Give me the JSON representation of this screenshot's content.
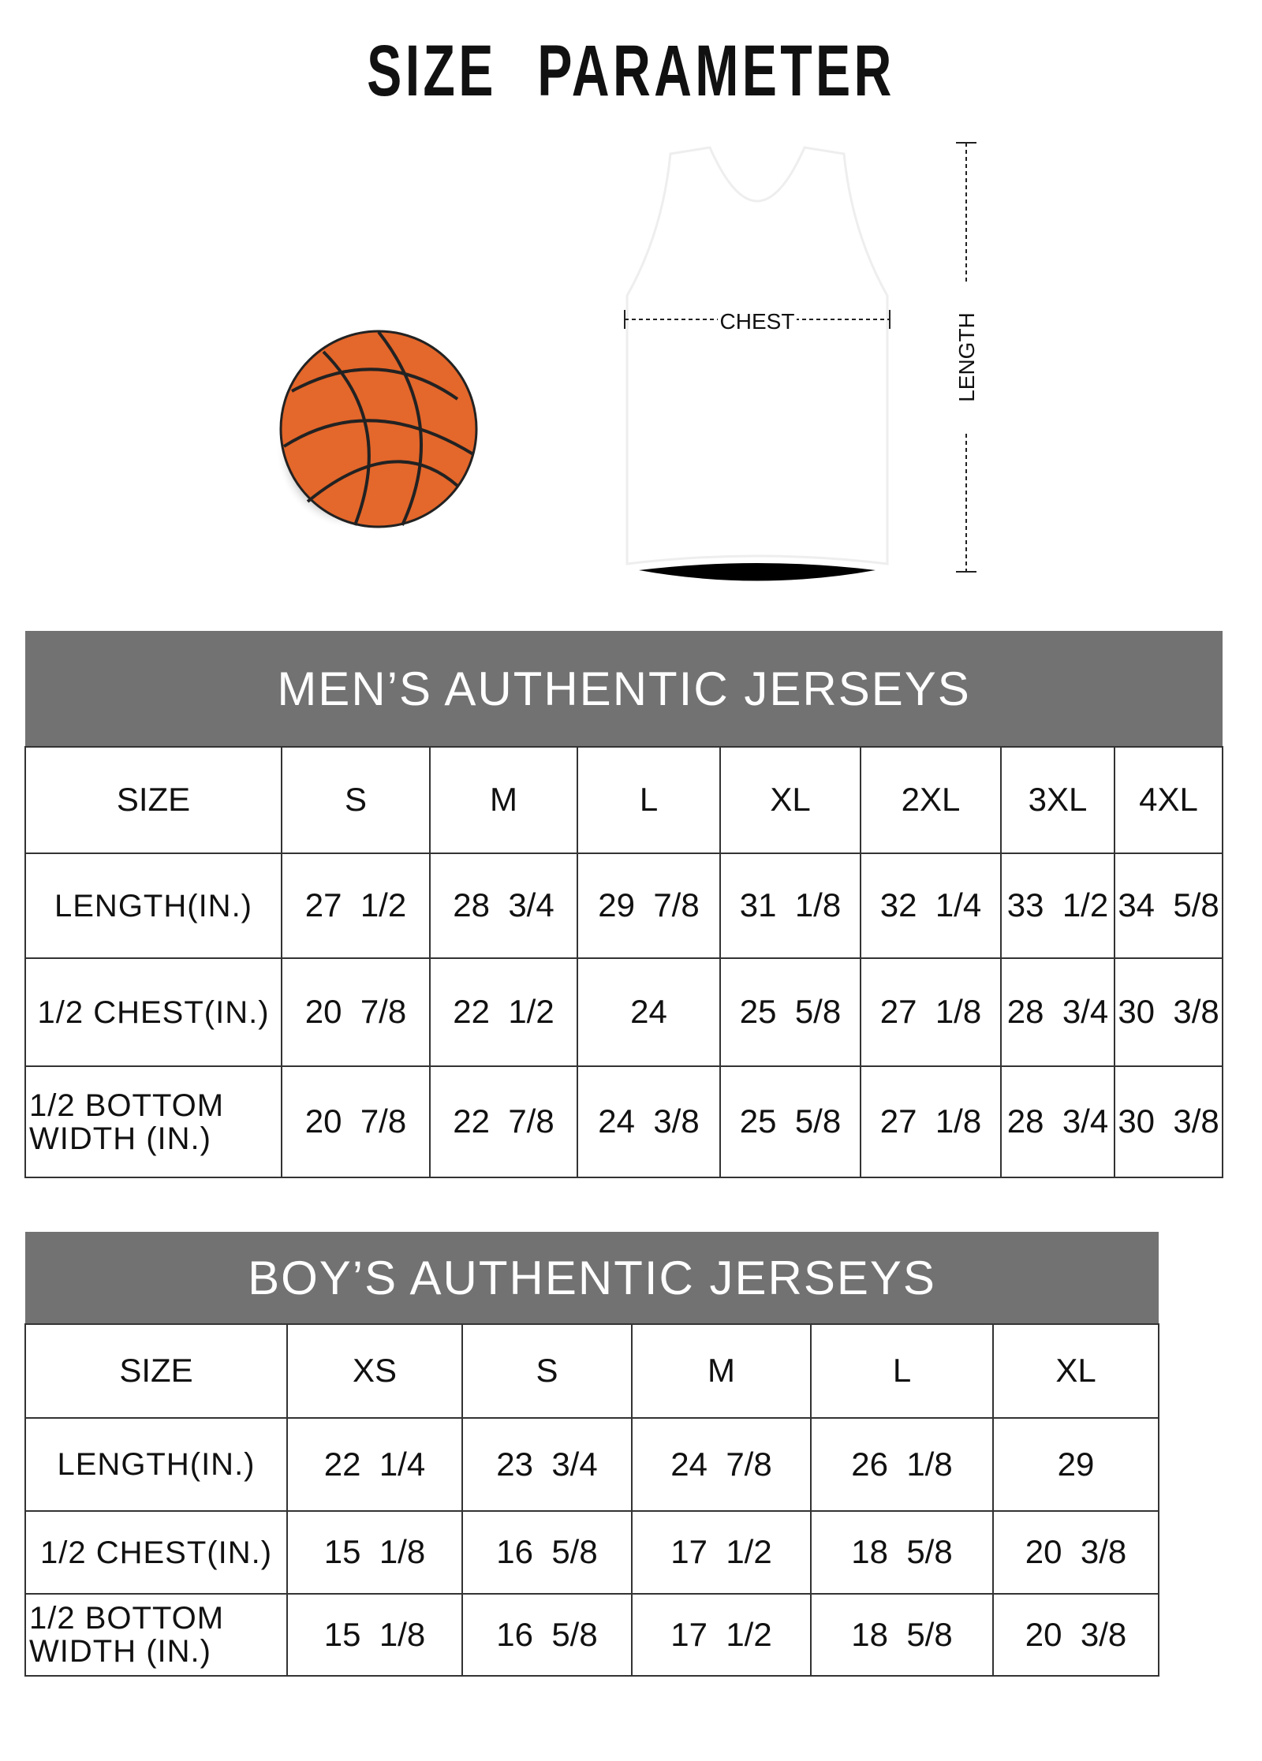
{
  "title": "SIZE  PARAMETER",
  "diagram": {
    "chest_label": "CHEST",
    "length_label": "LENGTH",
    "ball_color": "#e4672b"
  },
  "men": {
    "heading": "MEN’S AUTHENTIC JERSEYS",
    "columns": [
      "SIZE",
      "S",
      "M",
      "L",
      "XL",
      "2XL",
      "3XL",
      "4XL"
    ],
    "rows": [
      {
        "label": "LENGTH(IN.)",
        "values": [
          "27  1/2",
          "28  3/4",
          "29  7/8",
          "31  1/8",
          "32  1/4",
          "33  1/2",
          "34  5/8"
        ]
      },
      {
        "label": "1/2 CHEST(IN.)",
        "values": [
          "20  7/8",
          "22  1/2",
          "24",
          "25  5/8",
          "27  1/8",
          "28  3/4",
          "30  3/8"
        ]
      },
      {
        "label": "1/2 BOTTOM WIDTH  (IN.)",
        "values": [
          "20  7/8",
          "22  7/8",
          "24  3/8",
          "25  5/8",
          "27  1/8",
          "28  3/4",
          "30  3/8"
        ]
      }
    ]
  },
  "boy": {
    "heading": "BOY’S AUTHENTIC JERSEYS",
    "columns": [
      "SIZE",
      "XS",
      "S",
      "M",
      "L",
      "XL"
    ],
    "rows": [
      {
        "label": "LENGTH(IN.)",
        "values": [
          "22  1/4",
          "23  3/4",
          "24  7/8",
          "26  1/8",
          "29"
        ]
      },
      {
        "label": "1/2 CHEST(IN.)",
        "values": [
          "15  1/8",
          "16  5/8",
          "17  1/2",
          "18  5/8",
          "20  3/8"
        ]
      },
      {
        "label": "1/2 BOTTOM WIDTH  (IN.)",
        "values": [
          "15  1/8",
          "16  5/8",
          "17  1/2",
          "18  5/8",
          "20  3/8"
        ]
      }
    ]
  },
  "colors": {
    "header_bg": "#727272"
  }
}
